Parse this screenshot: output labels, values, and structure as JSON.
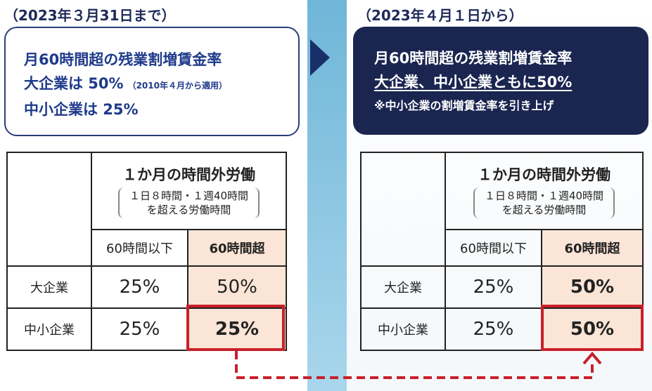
{
  "left": {
    "period": "（2023年３月31日まで）",
    "box": {
      "line1": "月60時間超の残業割増賃金率",
      "line2_main": "大企業は 50%",
      "line2_note": "（2010年４月から適用）",
      "line3": "中小企業は 25%"
    },
    "table": {
      "header_title": "１か月の時間外労働",
      "header_sub1": "１日８時間・１週40時間",
      "header_sub2": "を超える労働時間",
      "col_under": "60時間以下",
      "col_over": "60時間超",
      "rows": [
        {
          "name": "大企業",
          "under": "25%",
          "over": "50%"
        },
        {
          "name": "中小企業",
          "under": "25%",
          "over": "25%"
        }
      ]
    }
  },
  "right": {
    "period": "（2023年４月１日から）",
    "box": {
      "line1": "月60時間超の残業割増賃金率",
      "line2": "大企業、中小企業ともに50%",
      "line3": "※中小企業の割増賃金率を引き上げ"
    },
    "table": {
      "header_title": "１か月の時間外労働",
      "header_sub1": "１日８時間・１週40時間",
      "header_sub2": "を超える労働時間",
      "col_under": "60時間以下",
      "col_over": "60時間超",
      "rows": [
        {
          "name": "大企業",
          "under": "25%",
          "over": "50%"
        },
        {
          "name": "中小企業",
          "under": "25%",
          "over": "50%"
        }
      ]
    }
  },
  "colors": {
    "navy": "#1a2550",
    "accent_red": "#c8202a",
    "highlight_fill": "#fbe5d6",
    "divider": "#6fb6d8"
  },
  "icons": [
    "right-arrow-icon",
    "dashed-up-arrow-icon"
  ]
}
